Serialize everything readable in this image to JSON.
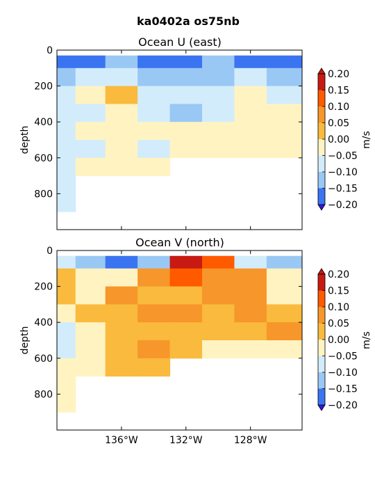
{
  "figure": {
    "title": "ka0402a os75nb"
  },
  "colorbar": {
    "unit": "m/s",
    "ticks": [
      "0.20",
      "0.15",
      "0.10",
      "0.05",
      "0.00",
      "−0.05",
      "−0.10",
      "−0.15",
      "−0.20"
    ],
    "colors": [
      "#c71a12",
      "#ff5a00",
      "#f7962b",
      "#f9ba3d",
      "#fff3c2",
      "#d2ecfb",
      "#9ac8f5",
      "#3b74f0",
      "#3612e4"
    ]
  },
  "chart_data": [
    {
      "type": "heatmap",
      "title": "Ocean U (east)",
      "xlabel": "",
      "ylabel": "depth",
      "y_ticks": [
        "0",
        "200",
        "400",
        "600",
        "800"
      ],
      "x_ticks": [],
      "ylim": [
        1000,
        0
      ],
      "xlim": [
        -140.0,
        -124.8
      ],
      "cbar_label": "m/s",
      "levels": [
        -0.2,
        -0.15,
        -0.1,
        -0.05,
        0.0,
        0.05,
        0.1,
        0.15,
        0.2
      ],
      "x": [
        -139.7,
        -138.0,
        -136.0,
        -134.0,
        -132.0,
        -130.0,
        -128.0,
        -126.0
      ],
      "depth": [
        50,
        150,
        250,
        350,
        450,
        550,
        650,
        750,
        850
      ],
      "values": [
        [
          -0.18,
          -0.2,
          -0.15,
          -0.2,
          -0.17,
          -0.12,
          -0.2,
          -0.19
        ],
        [
          -0.12,
          -0.1,
          -0.08,
          -0.15,
          -0.12,
          -0.12,
          -0.1,
          -0.13
        ],
        [
          -0.08,
          -0.05,
          0.0,
          -0.1,
          -0.08,
          -0.08,
          -0.05,
          -0.08
        ],
        [
          -0.1,
          -0.08,
          -0.05,
          -0.08,
          -0.12,
          -0.08,
          -0.05,
          -0.05
        ],
        [
          -0.1,
          -0.05,
          -0.05,
          -0.05,
          -0.03,
          -0.05,
          -0.03,
          -0.02
        ],
        [
          -0.08,
          -0.08,
          -0.05,
          -0.08,
          -0.05,
          -0.03,
          -0.05,
          -0.03
        ],
        [
          -0.08,
          -0.05,
          -0.03,
          -0.05,
          null,
          null,
          null,
          null
        ],
        [
          -0.08,
          null,
          null,
          null,
          null,
          null,
          null,
          null
        ],
        [
          -0.08,
          null,
          null,
          null,
          null,
          null,
          null,
          null
        ]
      ]
    },
    {
      "type": "heatmap",
      "title": "Ocean V (north)",
      "xlabel": "",
      "ylabel": "depth",
      "y_ticks": [
        "0",
        "200",
        "400",
        "600",
        "800"
      ],
      "x_ticks": [
        "136°W",
        "132°W",
        "128°W"
      ],
      "x_tick_values": [
        -136,
        -132,
        -128
      ],
      "ylim": [
        1000,
        0
      ],
      "xlim": [
        -140.0,
        -124.8
      ],
      "cbar_label": "m/s",
      "levels": [
        -0.2,
        -0.15,
        -0.1,
        -0.05,
        0.0,
        0.05,
        0.1,
        0.15,
        0.2
      ],
      "x": [
        -139.7,
        -138.0,
        -136.0,
        -134.0,
        -132.0,
        -130.0,
        -128.0,
        -126.0
      ],
      "depth": [
        50,
        150,
        250,
        350,
        450,
        550,
        650,
        750,
        850
      ],
      "values": [
        [
          -0.1,
          -0.12,
          -0.18,
          -0.12,
          0.15,
          0.1,
          -0.08,
          -0.12
        ],
        [
          0.03,
          -0.03,
          -0.05,
          0.08,
          0.1,
          0.08,
          0.05,
          -0.05
        ],
        [
          0.02,
          -0.05,
          0.05,
          0.03,
          0.02,
          0.08,
          0.05,
          -0.03
        ],
        [
          -0.05,
          0.02,
          0.02,
          0.05,
          0.05,
          0.03,
          0.05,
          0.02
        ],
        [
          -0.08,
          -0.05,
          0.03,
          0.02,
          0.03,
          0.02,
          0.03,
          0.05
        ],
        [
          -0.08,
          -0.05,
          0.02,
          0.05,
          0.02,
          -0.02,
          -0.05,
          -0.03
        ],
        [
          -0.05,
          -0.03,
          0.02,
          0.03,
          null,
          null,
          null,
          null
        ],
        [
          -0.03,
          null,
          null,
          null,
          null,
          null,
          null,
          null
        ],
        [
          -0.02,
          null,
          null,
          null,
          null,
          null,
          null,
          null
        ]
      ]
    }
  ]
}
